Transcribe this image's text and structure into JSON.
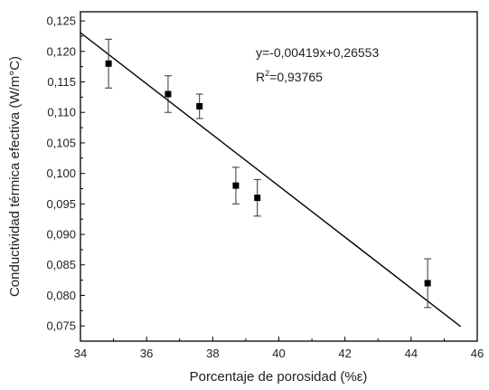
{
  "chart_data": {
    "type": "scatter",
    "xlabel": "Porcentaje de porosidad (%ε)",
    "ylabel": "Conductividad térmica efectiva (W/m°C)",
    "xlim": [
      34,
      46
    ],
    "ylim": [
      0.0725,
      0.1265
    ],
    "xticks": [
      "34",
      "36",
      "38",
      "40",
      "42",
      "44",
      "46"
    ],
    "yticks": [
      "0,075",
      "0,080",
      "0,085",
      "0,090",
      "0,095",
      "0,100",
      "0,105",
      "0,110",
      "0,115",
      "0,120",
      "0,125"
    ],
    "points": [
      {
        "x": 34.85,
        "y": 0.118,
        "err": 0.004
      },
      {
        "x": 36.65,
        "y": 0.113,
        "err": 0.003
      },
      {
        "x": 37.6,
        "y": 0.111,
        "err": 0.002
      },
      {
        "x": 38.7,
        "y": 0.098,
        "err": 0.003
      },
      {
        "x": 39.35,
        "y": 0.096,
        "err": 0.003
      },
      {
        "x": 44.5,
        "y": 0.082,
        "err": 0.004
      }
    ],
    "fit": {
      "slope": -0.00419,
      "intercept": 0.26553,
      "x_range": [
        34,
        45.5
      ]
    },
    "equation": "y=-0,00419x+0,26553",
    "r2_prefix": "R",
    "r2_exp": "2",
    "r2_value": "=0,93765",
    "grid": false,
    "legend": "none"
  }
}
